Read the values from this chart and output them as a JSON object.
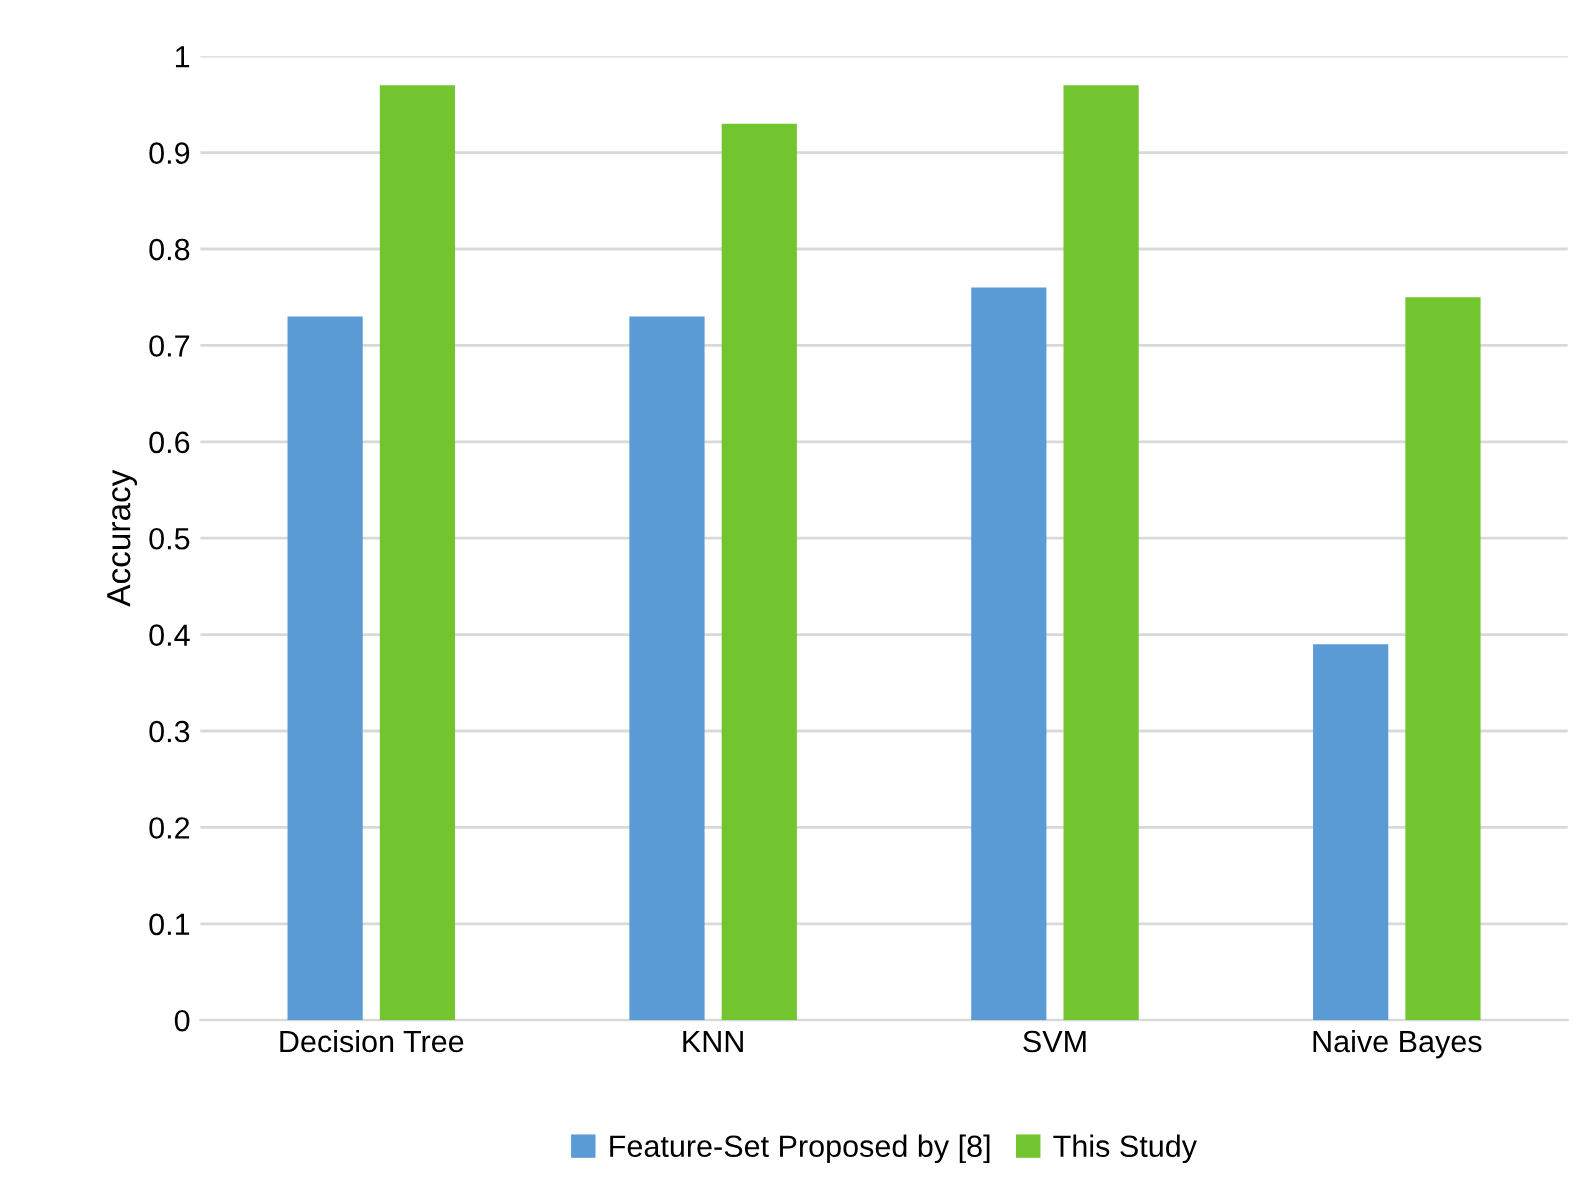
{
  "chart_data": {
    "type": "bar",
    "ylabel": "Accuracy",
    "categories": [
      "Decision Tree",
      "KNN",
      "SVM",
      "Naive Bayes"
    ],
    "series": [
      {
        "name": "Feature-Set Proposed by [8]",
        "color": "#5b9bd5",
        "values": [
          0.73,
          0.73,
          0.76,
          0.39
        ]
      },
      {
        "name": "This Study",
        "color": "#72c52f",
        "values": [
          0.97,
          0.93,
          0.97,
          0.75
        ]
      }
    ],
    "ylim": [
      0,
      1
    ],
    "yticks": [
      0,
      0.1,
      0.2,
      0.3,
      0.4,
      0.5,
      0.6,
      0.7,
      0.8,
      0.9,
      1
    ],
    "grid": "y",
    "legend": "bottom"
  }
}
